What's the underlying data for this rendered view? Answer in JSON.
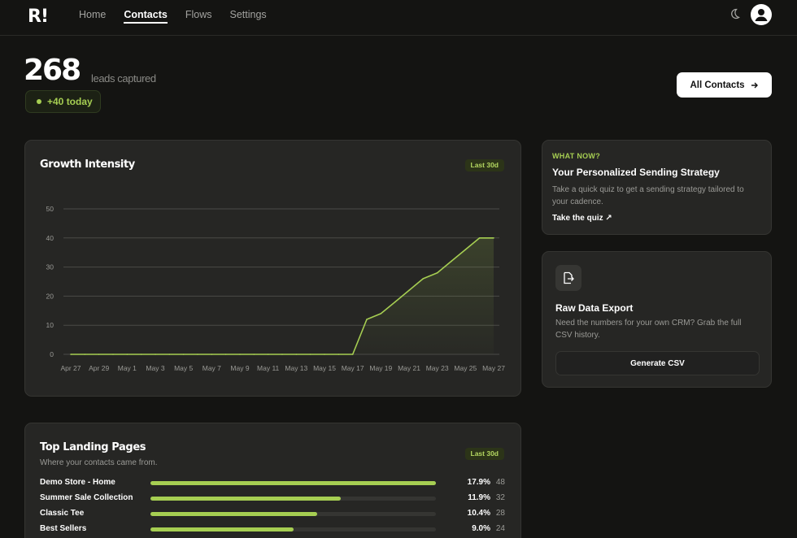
{
  "app": {
    "logo": "R!"
  },
  "nav": {
    "items": [
      {
        "label": "Home",
        "active": false
      },
      {
        "label": "Contacts",
        "active": true
      },
      {
        "label": "Flows",
        "active": false
      },
      {
        "label": "Settings",
        "active": false
      }
    ],
    "theme_icon": "moon-icon",
    "avatar_icon": "user-icon"
  },
  "hero": {
    "count": "268",
    "count_label": "leads captured",
    "today": "+40 today",
    "all_contacts_label": "All Contacts"
  },
  "growth": {
    "title": "Growth Intensity",
    "range_chip": "Last 30d"
  },
  "chart_data": {
    "type": "area",
    "title": "Growth Intensity",
    "xlabel": "",
    "ylabel": "",
    "ylim": [
      0,
      50
    ],
    "yticks": [
      0,
      10,
      20,
      30,
      40,
      50
    ],
    "xtick_labels": [
      "Apr 27",
      "Apr 29",
      "May 1",
      "May 3",
      "May 5",
      "May 7",
      "May 9",
      "May 11",
      "May 13",
      "May 15",
      "May 17",
      "May 19",
      "May 21",
      "May 23",
      "May 25",
      "May 27"
    ],
    "grid": true,
    "legend": "none",
    "line_color": "#a6ce52",
    "series": [
      {
        "x": [
          "Apr 27",
          "Apr 28",
          "Apr 29",
          "Apr 30",
          "May 1",
          "May 2",
          "May 3",
          "May 4",
          "May 5",
          "May 6",
          "May 7",
          "May 8",
          "May 9",
          "May 10",
          "May 11",
          "May 12",
          "May 13",
          "May 14",
          "May 15",
          "May 16",
          "May 17",
          "May 18",
          "May 19",
          "May 20",
          "May 21",
          "May 22",
          "May 23",
          "May 24",
          "May 25",
          "May 26",
          "May 27"
        ],
        "values": [
          0,
          0,
          0,
          0,
          0,
          0,
          0,
          0,
          0,
          0,
          0,
          0,
          0,
          0,
          0,
          0,
          0,
          0,
          0,
          0,
          0,
          12,
          14,
          18,
          22,
          26,
          28,
          32,
          36,
          40,
          40
        ]
      }
    ]
  },
  "strategy": {
    "kicker": "WHAT NOW?",
    "title": "Your Personalized Sending Strategy",
    "description": "Take a quick quiz to get a sending strategy tailored to your cadence.",
    "link": "Take the quiz ↗"
  },
  "export": {
    "icon": "file-export-icon",
    "title": "Raw Data Export",
    "description": "Need the numbers for your own CRM? Grab the full CSV history.",
    "button": "Generate CSV"
  },
  "landing": {
    "title": "Top Landing Pages",
    "subtitle": "Where your contacts came from.",
    "range_chip": "Last 30d",
    "rows": [
      {
        "name": "Demo Store - Home",
        "pct": "17.9%",
        "count": "48",
        "fill": 1.0
      },
      {
        "name": "Summer Sale Collection",
        "pct": "11.9%",
        "count": "32",
        "fill": 0.667
      },
      {
        "name": "Classic Tee",
        "pct": "10.4%",
        "count": "28",
        "fill": 0.583
      },
      {
        "name": "Best Sellers",
        "pct": "9.0%",
        "count": "24",
        "fill": 0.5
      }
    ]
  }
}
